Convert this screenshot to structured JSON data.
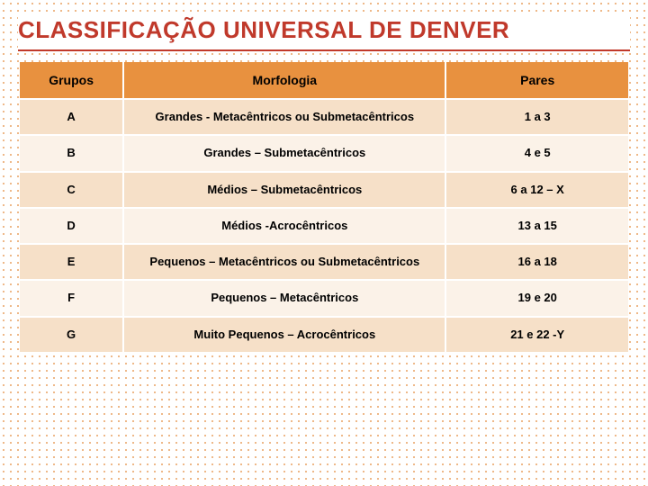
{
  "title": "CLASSIFICAÇÃO UNIVERSAL DE DENVER",
  "table": {
    "columns": [
      "Grupos",
      "Morfologia",
      "Pares"
    ],
    "rows": [
      [
        "A",
        "Grandes  - Metacêntricos ou Submetacêntricos",
        "1 a 3"
      ],
      [
        "B",
        "Grandes – Submetacêntricos",
        "4 e 5"
      ],
      [
        "C",
        "Médios – Submetacêntricos",
        "6 a 12 – X"
      ],
      [
        "D",
        "Médios -Acrocêntricos",
        "13 a 15"
      ],
      [
        "E",
        "Pequenos – Metacêntricos ou Submetacêntricos",
        "16 a 18"
      ],
      [
        "F",
        "Pequenos – Metacêntricos",
        "19 e 20"
      ],
      [
        "G",
        "Muito Pequenos – Acrocêntricos",
        "21 e 22 -Y"
      ]
    ],
    "header_bg": "#e8913f",
    "row_odd_bg": "#f6e0c8",
    "row_even_bg": "#fbf2e8",
    "title_color": "#c0392b",
    "font_family": "Arial",
    "title_fontsize": 26,
    "header_fontsize": 14,
    "cell_fontsize": 13,
    "col_widths_pct": [
      17,
      53,
      30
    ]
  }
}
